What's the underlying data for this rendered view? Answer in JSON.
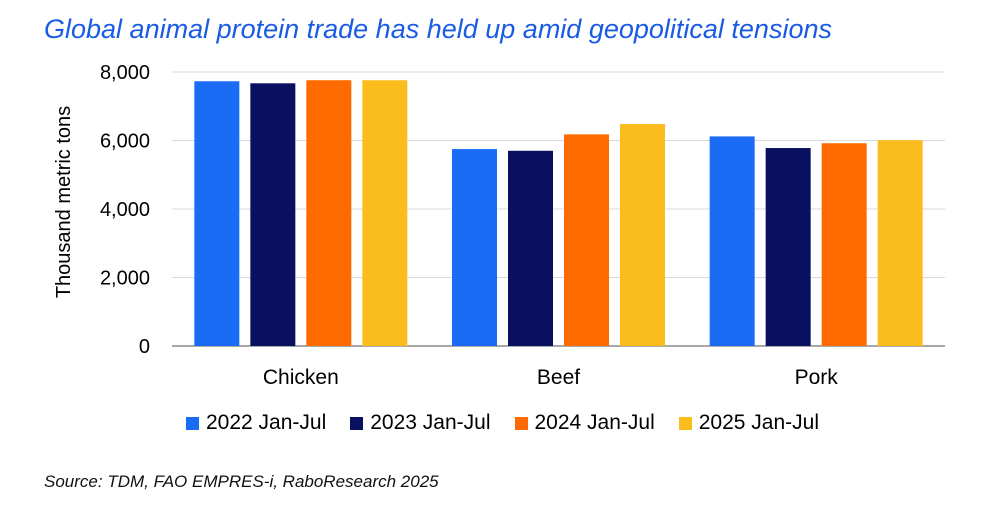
{
  "title": "Global animal protein trade has held up amid geopolitical tensions",
  "source": {
    "label": "Source:",
    "text": " TDM, FAO EMPRES-i, RaboResearch 2025"
  },
  "chart_data": {
    "type": "bar",
    "title": "Global animal protein trade has held up amid geopolitical tensions",
    "xlabel": "",
    "ylabel": "Thousand metric tons",
    "ylim": [
      0,
      8000
    ],
    "yticks": [
      0,
      2000,
      4000,
      6000,
      8000
    ],
    "ytick_labels": [
      "0",
      "2,000",
      "4,000",
      "6,000",
      "8,000"
    ],
    "grid": true,
    "legend": "bottom",
    "categories": [
      "Chicken",
      "Beef",
      "Pork"
    ],
    "series": [
      {
        "name": "2022 Jan-Jul",
        "color": "#1a6cf5",
        "values": [
          7730,
          5750,
          6120
        ]
      },
      {
        "name": "2023 Jan-Jul",
        "color": "#0a1060",
        "values": [
          7670,
          5700,
          5780
        ]
      },
      {
        "name": "2024 Jan-Jul",
        "color": "#ff6a00",
        "values": [
          7760,
          6180,
          5920
        ]
      },
      {
        "name": "2025 Jan-Jul",
        "color": "#fbbd1e",
        "values": [
          7760,
          6480,
          6010
        ]
      }
    ]
  }
}
